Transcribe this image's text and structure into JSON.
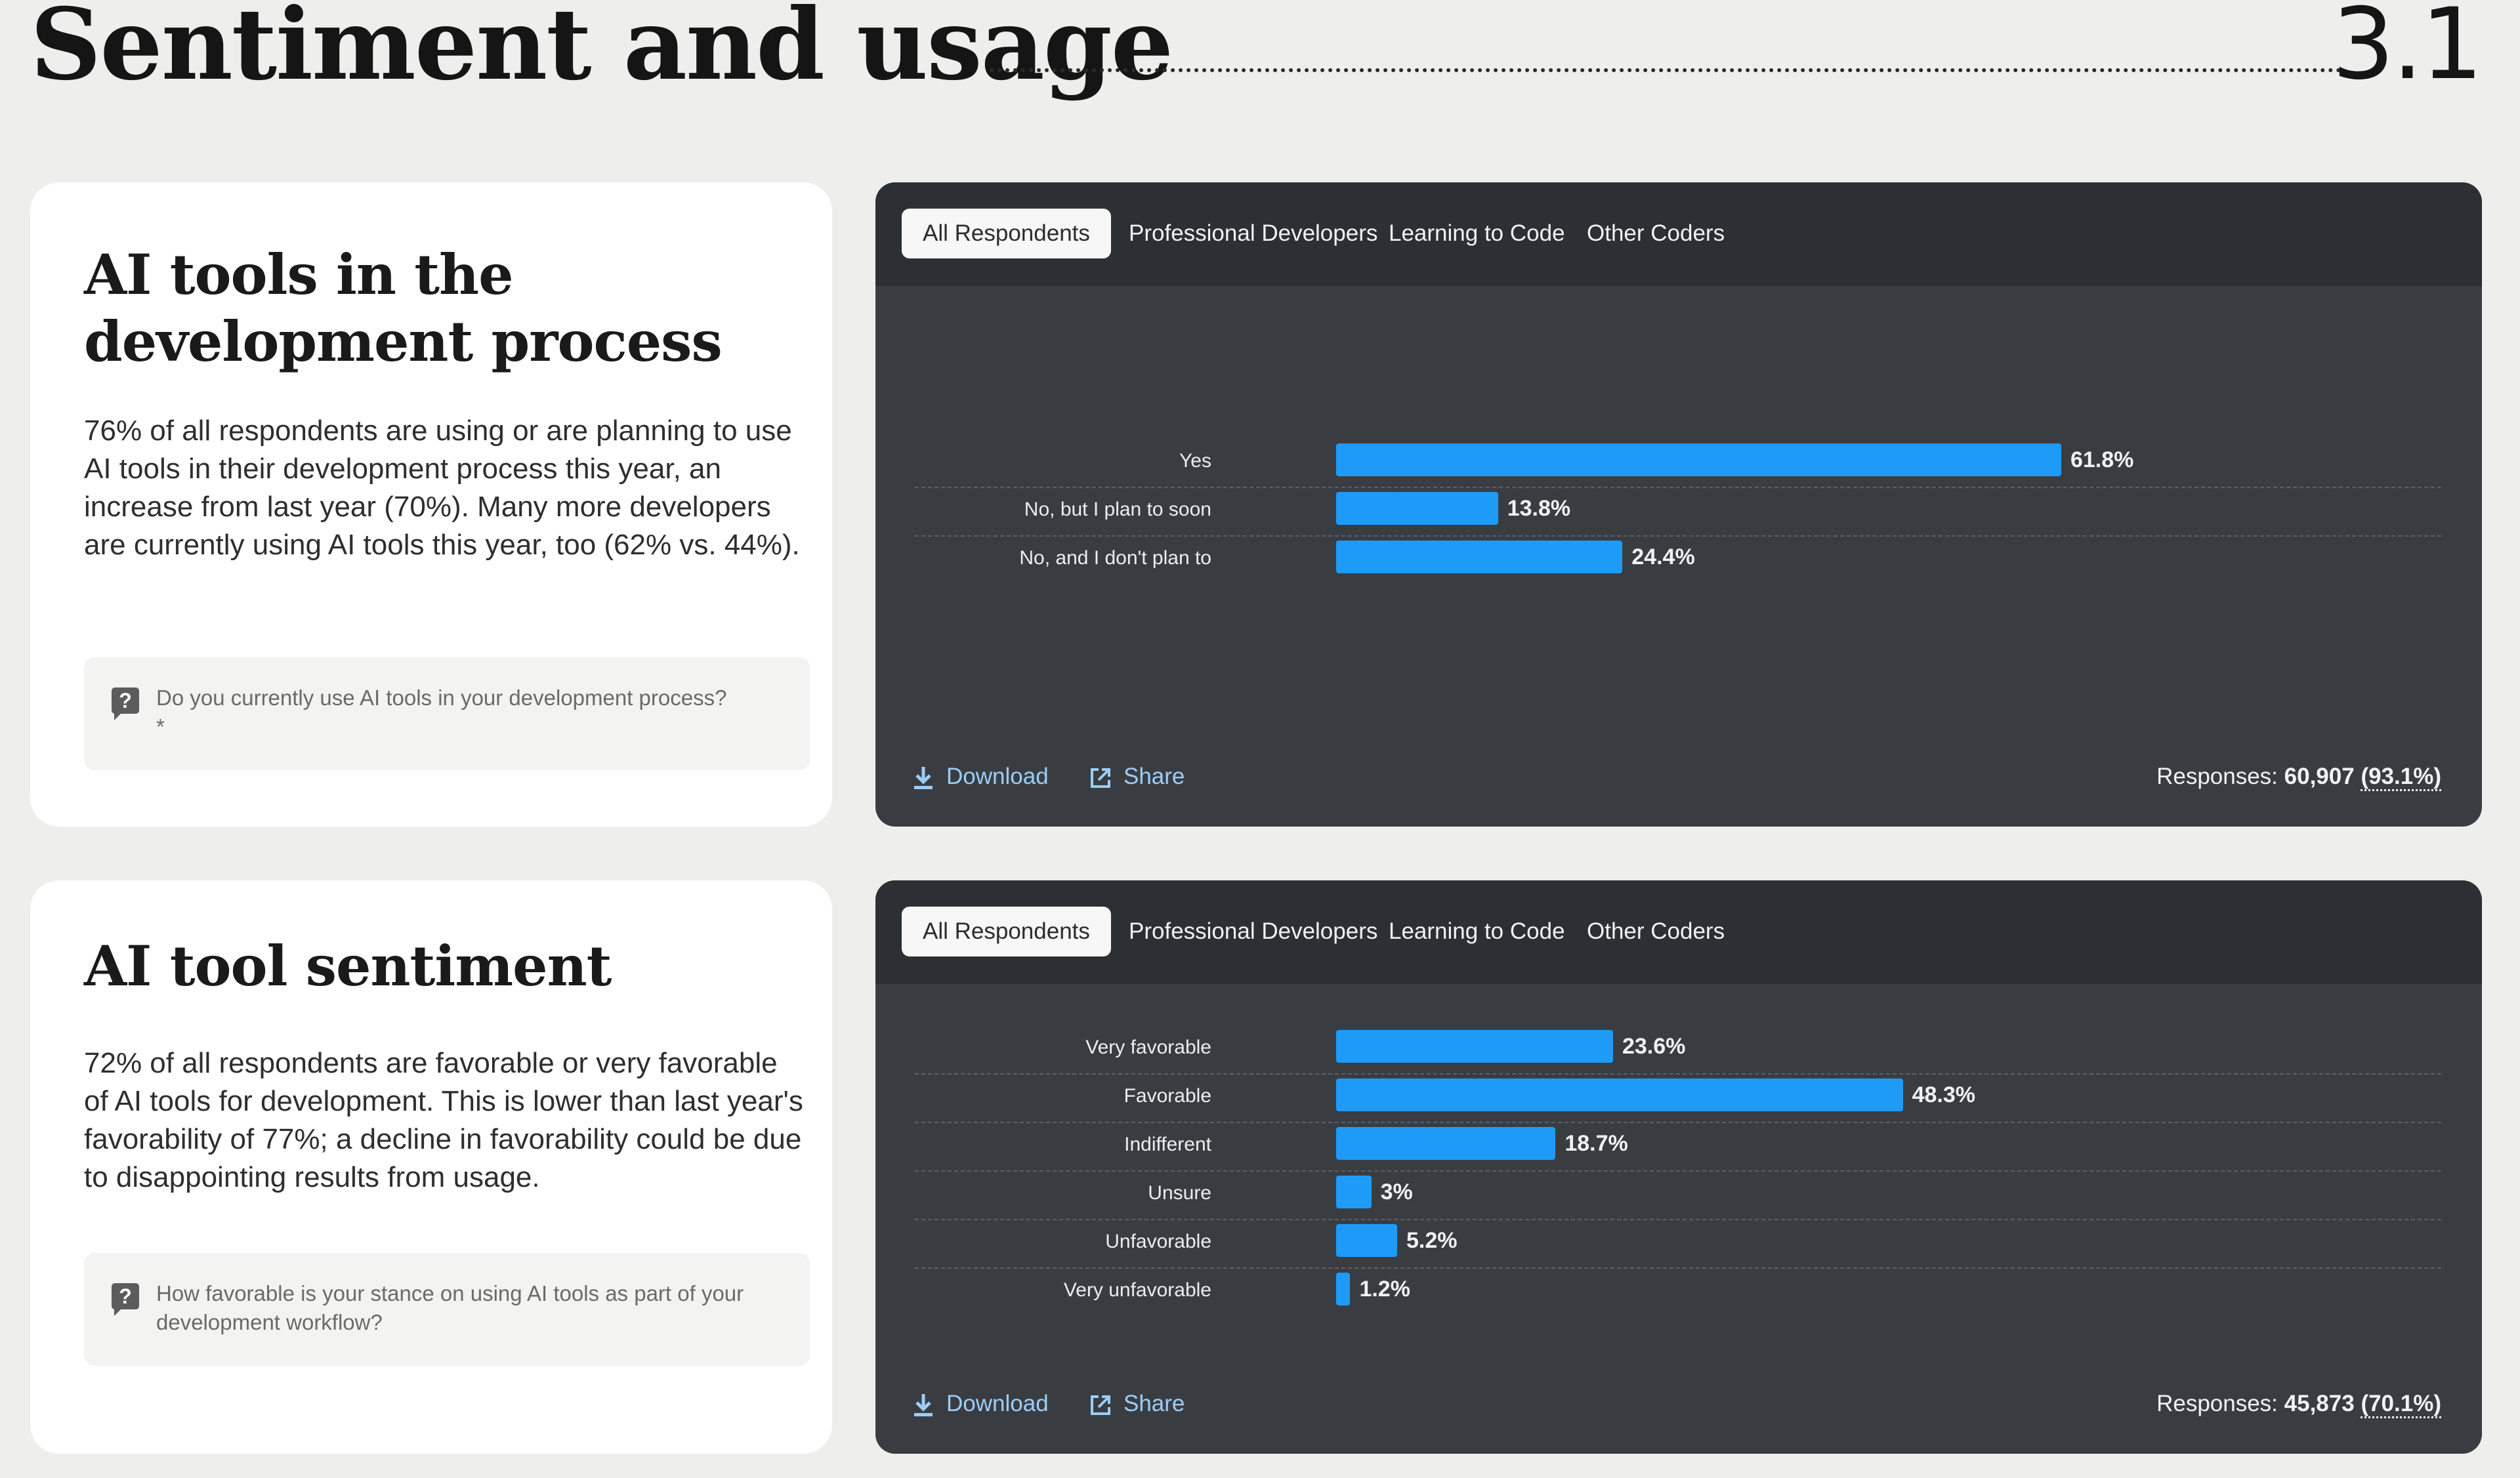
{
  "page": {
    "title": "Sentiment and usage",
    "section_number": "3.1"
  },
  "colors": {
    "background": "#eeeeec",
    "panel": "#393d42",
    "tabbar": "#2c2f33",
    "bar": "#1e9bf7",
    "link": "#9ccdf7"
  },
  "sections": [
    {
      "heading": "AI tools in the development process",
      "description": "76% of all respondents are using or are planning to use AI tools in their development process this year, an increase from last year (70%). Many more developers are currently using AI tools this year, too (62% vs. 44%).",
      "question": "Do you currently use AI tools in your development process?",
      "question_marker": "*",
      "question_icon": "question-bubble-icon",
      "tabs": [
        "All Respondents",
        "Professional Developers",
        "Learning to Code",
        "Other Coders"
      ],
      "active_tab": "All Respondents",
      "download_label": "Download",
      "share_label": "Share",
      "responses_label": "Responses:",
      "responses_count": "60,907",
      "responses_pct": "(93.1%)"
    },
    {
      "heading": "AI tool sentiment",
      "description": "72% of all respondents are favorable or very favorable of AI tools for development. This is lower than last year's favorability of 77%; a decline in favorability could be due to disappointing results from usage.",
      "question": "How favorable is your stance on using AI tools as part of your development workflow?",
      "question_icon": "question-bubble-icon",
      "tabs": [
        "All Respondents",
        "Professional Developers",
        "Learning to Code",
        "Other Coders"
      ],
      "active_tab": "All Respondents",
      "download_label": "Download",
      "share_label": "Share",
      "responses_label": "Responses:",
      "responses_count": "45,873",
      "responses_pct": "(70.1%)"
    }
  ],
  "chart_data": [
    {
      "type": "bar",
      "orientation": "horizontal",
      "categories": [
        "Yes",
        "No, but I plan to soon",
        "No, and I don't plan to"
      ],
      "values": [
        61.8,
        13.8,
        24.4
      ],
      "value_labels": [
        "61.8%",
        "13.8%",
        "24.4%"
      ],
      "unit": "%",
      "xlim": [
        0,
        100
      ],
      "grid": false
    },
    {
      "type": "bar",
      "orientation": "horizontal",
      "categories": [
        "Very favorable",
        "Favorable",
        "Indifferent",
        "Unsure",
        "Unfavorable",
        "Very unfavorable"
      ],
      "values": [
        23.6,
        48.3,
        18.7,
        3,
        5.2,
        1.2
      ],
      "value_labels": [
        "23.6%",
        "48.3%",
        "18.7%",
        "3%",
        "5.2%",
        "1.2%"
      ],
      "unit": "%",
      "xlim": [
        0,
        100
      ],
      "grid": false
    }
  ]
}
